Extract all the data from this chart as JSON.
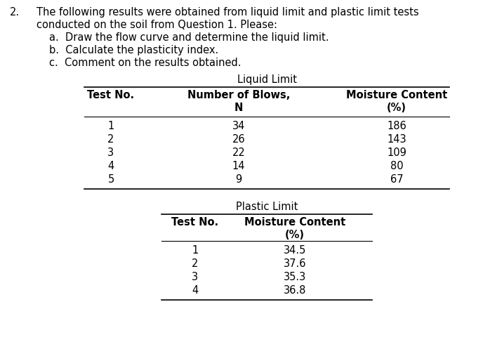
{
  "title_number": "2.",
  "title_line1": "The following results were obtained from liquid limit and plastic limit tests",
  "title_line2": "conducted on the soil from Question 1. Please:",
  "sub_a": "a.  Draw the flow curve and determine the liquid limit.",
  "sub_b": "b.  Calculate the plasticity index.",
  "sub_c": "c.  Comment on the results obtained.",
  "ll_title": "Liquid Limit",
  "ll_col1_header1": "Test No.",
  "ll_col2_header1": "Number of Blows,",
  "ll_col2_header2": "N",
  "ll_col3_header1": "Moisture Content",
  "ll_col3_header2": "(%)",
  "ll_data": [
    [
      "1",
      "34",
      "186"
    ],
    [
      "2",
      "26",
      "143"
    ],
    [
      "3",
      "22",
      "109"
    ],
    [
      "4",
      "14",
      "80"
    ],
    [
      "5",
      "9",
      "67"
    ]
  ],
  "pl_title": "Plastic Limit",
  "pl_col1_header": "Test No.",
  "pl_col2_header1": "Moisture Content",
  "pl_col2_header2": "(%)",
  "pl_data": [
    [
      "1",
      "34.5"
    ],
    [
      "2",
      "37.6"
    ],
    [
      "3",
      "35.3"
    ],
    [
      "4",
      "36.8"
    ]
  ],
  "fig_width": 6.88,
  "fig_height": 5.04,
  "dpi": 100,
  "font_size": 10.5,
  "bg_color": "#ffffff",
  "text_color": "#000000",
  "line_color": "#000000"
}
